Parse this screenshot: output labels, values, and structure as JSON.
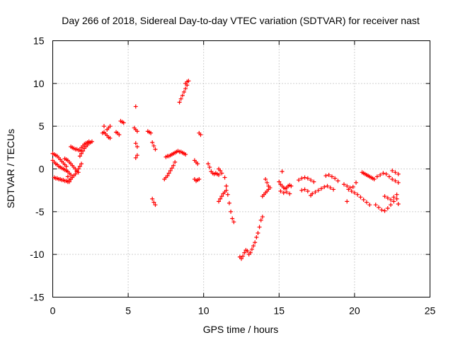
{
  "chart_data": {
    "type": "scatter",
    "title": "Day 266 of 2018, Sidereal Day-to-day VTEC variation (SDTVAR) for receiver nast",
    "xlabel": "GPS time / hours",
    "ylabel": "SDTVAR / TECUs",
    "xlim": [
      0,
      25
    ],
    "ylim": [
      -15,
      15
    ],
    "xticks": [
      0,
      5,
      10,
      15,
      20,
      25
    ],
    "yticks": [
      -15,
      -10,
      -5,
      0,
      5,
      10,
      15
    ],
    "xtick_labels": [
      "0",
      "5",
      "10",
      "15",
      "20",
      "25"
    ],
    "ytick_labels": [
      "-15",
      "-10",
      "-5",
      "0",
      "5",
      "10",
      "15"
    ],
    "grid": true,
    "marker": "+",
    "color": "#ff0000",
    "series": [
      {
        "name": "SDTVAR",
        "x": [
          0.0,
          0.1,
          0.2,
          0.3,
          0.4,
          0.5,
          0.6,
          0.7,
          0.8,
          0.9,
          0.0,
          0.1,
          0.2,
          0.3,
          0.4,
          0.5,
          0.6,
          0.7,
          0.8,
          0.9,
          1.0,
          1.1,
          1.2,
          0.1,
          0.2,
          0.3,
          0.4,
          0.5,
          0.6,
          0.7,
          0.8,
          0.9,
          1.0,
          1.1,
          0.8,
          0.9,
          1.0,
          1.1,
          1.2,
          1.3,
          1.4,
          1.5,
          1.6,
          1.7,
          1.1,
          1.2,
          1.3,
          1.4,
          1.5,
          1.6,
          1.7,
          1.8,
          1.9,
          1.2,
          1.3,
          1.4,
          1.5,
          1.6,
          1.7,
          1.8,
          1.9,
          1.8,
          1.9,
          2.0,
          2.1,
          2.2,
          2.3,
          2.4,
          2.5,
          2.6,
          1.9,
          2.0,
          2.1,
          2.2,
          2.3,
          2.4,
          3.3,
          3.4,
          3.5,
          3.6,
          3.7,
          3.8,
          3.6,
          3.7,
          3.8,
          4.2,
          4.3,
          4.4,
          4.5,
          4.6,
          4.7,
          5.4,
          5.5,
          5.6,
          5.5,
          5.6,
          5.6,
          5.5,
          6.3,
          6.4,
          6.5,
          6.6,
          6.7,
          6.8,
          6.6,
          6.7,
          6.8,
          7.4,
          7.5,
          7.6,
          7.7,
          7.8,
          7.9,
          8.0,
          8.1,
          7.5,
          7.6,
          7.7,
          7.8,
          7.9,
          8.0,
          8.1,
          8.2,
          8.3,
          8.4,
          8.5,
          8.6,
          8.7,
          8.8,
          8.4,
          8.5,
          8.6,
          8.7,
          8.8,
          8.9,
          8.8,
          8.9,
          9.0,
          9.4,
          9.5,
          9.6,
          9.7,
          9.4,
          9.5,
          9.6,
          9.8,
          10.3,
          10.4,
          10.5,
          10.6,
          10.7,
          10.8,
          10.9,
          11.0,
          11.0,
          11.1,
          11.2,
          11.3,
          11.4,
          11.5,
          11.0,
          11.1,
          11.2,
          11.4,
          11.5,
          11.6,
          11.7,
          11.8,
          11.9,
          12.0,
          12.4,
          12.5,
          12.6,
          12.7,
          12.8,
          12.9,
          13.0,
          13.1,
          13.2,
          13.3,
          13.4,
          13.5,
          13.6,
          13.7,
          13.8,
          13.9,
          13.9,
          14.0,
          14.1,
          14.2,
          14.3,
          14.4,
          14.1,
          14.2,
          14.3,
          15.0,
          15.1,
          15.2,
          15.3,
          15.4,
          15.5,
          15.6,
          15.7,
          15.8,
          15.1,
          15.3,
          15.5,
          15.7,
          16.3,
          16.5,
          16.7,
          16.9,
          17.1,
          17.3,
          16.5,
          16.7,
          16.9,
          17.1,
          17.2,
          17.4,
          17.6,
          17.8,
          18.0,
          18.2,
          18.4,
          18.6,
          18.1,
          18.3,
          18.5,
          18.7,
          18.9,
          19.3,
          19.5,
          19.7,
          19.9,
          20.1,
          19.6,
          19.8,
          20.0,
          20.2,
          20.4,
          20.6,
          20.8,
          21.0,
          20.6,
          20.8,
          21.0,
          21.2,
          20.5,
          20.7,
          20.9,
          21.1,
          21.3,
          21.5,
          21.7,
          21.9,
          22.1,
          22.3,
          22.5,
          22.7,
          22.9,
          21.4,
          21.6,
          21.8,
          22.0,
          22.2,
          22.4,
          22.6,
          22.8,
          22.0,
          22.2,
          22.4,
          22.6,
          22.8,
          22.5,
          22.7,
          22.9,
          1.0,
          3.4,
          5.5,
          9.7,
          15.2,
          19.5,
          22.9
        ],
        "y": [
          1.8,
          1.7,
          1.6,
          1.5,
          1.3,
          1.1,
          0.9,
          0.7,
          0.5,
          0.3,
          1.0,
          0.8,
          0.6,
          0.5,
          0.3,
          0.2,
          0.1,
          0.0,
          -0.1,
          -0.2,
          -0.3,
          -0.5,
          -0.7,
          -1.0,
          -1.1,
          -1.1,
          -1.2,
          -1.2,
          -1.3,
          -1.3,
          -1.4,
          -1.4,
          -1.5,
          -1.5,
          1.2,
          1.1,
          1.0,
          0.8,
          0.6,
          0.4,
          0.2,
          0.0,
          -0.2,
          -0.4,
          -1.3,
          -1.2,
          -1.0,
          -0.8,
          -0.6,
          -0.3,
          0.0,
          0.3,
          0.6,
          2.6,
          2.5,
          2.4,
          2.3,
          2.3,
          2.2,
          2.2,
          2.1,
          1.5,
          1.8,
          2.1,
          2.4,
          2.6,
          2.8,
          3.0,
          3.1,
          3.2,
          2.5,
          2.7,
          2.9,
          3.0,
          3.1,
          3.2,
          4.2,
          4.3,
          4.1,
          3.9,
          3.7,
          3.6,
          4.6,
          4.8,
          5.0,
          4.3,
          4.2,
          4.0,
          5.6,
          5.5,
          5.4,
          4.8,
          4.6,
          4.4,
          3.0,
          2.6,
          1.6,
          1.3,
          4.4,
          4.3,
          4.2,
          3.1,
          2.7,
          2.3,
          -3.5,
          -3.9,
          -4.2,
          -1.2,
          -1.0,
          -0.8,
          -0.5,
          -0.2,
          0.1,
          0.4,
          0.8,
          1.4,
          1.5,
          1.5,
          1.6,
          1.7,
          1.8,
          1.9,
          2.0,
          2.1,
          2.0,
          2.0,
          1.9,
          1.8,
          1.7,
          7.8,
          8.2,
          8.6,
          9.0,
          9.4,
          9.8,
          10.0,
          10.2,
          10.3,
          -1.2,
          -1.4,
          -1.3,
          -1.2,
          1.0,
          0.8,
          0.6,
          4.0,
          0.6,
          0.2,
          -0.3,
          -0.5,
          -0.6,
          -0.5,
          -0.6,
          -0.7,
          -3.8,
          -3.5,
          -3.2,
          -2.9,
          -2.7,
          -2.5,
          0.0,
          -0.2,
          -0.5,
          -1.0,
          -2.0,
          -3.0,
          -4.0,
          -5.0,
          -5.8,
          -6.2,
          -10.3,
          -10.5,
          -10.2,
          -9.8,
          -9.5,
          -9.6,
          -10.0,
          -9.8,
          -9.4,
          -9.0,
          -8.6,
          -8.0,
          -7.5,
          -6.8,
          -6.0,
          -5.6,
          -3.2,
          -3.0,
          -2.8,
          -2.6,
          -2.4,
          -2.2,
          -1.2,
          -1.6,
          -2.0,
          -1.5,
          -1.8,
          -2.0,
          -2.2,
          -2.3,
          -2.2,
          -2.0,
          -1.9,
          -2.0,
          -2.6,
          -2.8,
          -2.7,
          -2.9,
          -1.3,
          -1.1,
          -1.0,
          -1.1,
          -1.3,
          -1.5,
          -2.5,
          -2.4,
          -2.6,
          -3.1,
          -2.9,
          -2.7,
          -2.5,
          -2.3,
          -2.1,
          -2.0,
          -2.2,
          -2.4,
          -0.8,
          -0.7,
          -0.9,
          -1.1,
          -1.4,
          -1.8,
          -2.0,
          -2.2,
          -2.1,
          -1.6,
          -2.4,
          -2.6,
          -2.8,
          -3.0,
          -3.3,
          -3.6,
          -3.9,
          -4.2,
          -0.5,
          -0.7,
          -0.9,
          -1.1,
          -0.4,
          -0.6,
          -0.8,
          -1.0,
          -1.2,
          -0.9,
          -0.7,
          -0.5,
          -0.6,
          -0.9,
          -1.2,
          -1.4,
          -1.6,
          -4.2,
          -4.5,
          -4.8,
          -4.9,
          -4.6,
          -4.2,
          -3.8,
          -3.5,
          -3.2,
          -3.4,
          -3.6,
          -3.3,
          -3.0,
          -0.2,
          -0.4,
          -0.6,
          -0.9,
          5.0,
          7.3,
          4.2,
          -0.3,
          -3.8,
          -4.1
        ]
      }
    ]
  }
}
